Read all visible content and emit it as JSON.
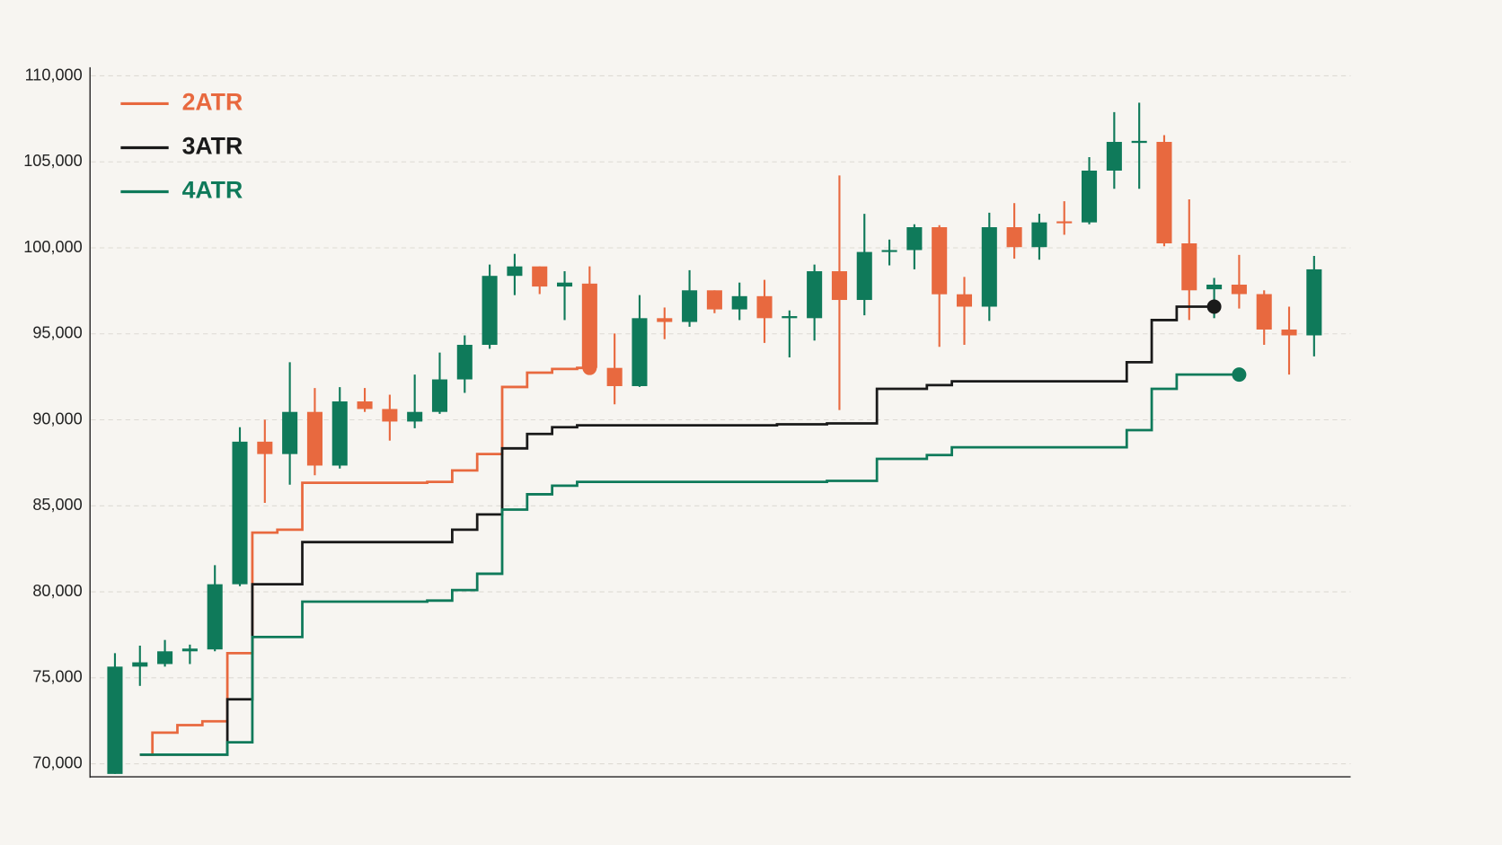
{
  "chart_data": {
    "type": "candlestick",
    "categories": [
      null,
      null,
      null,
      null,
      null,
      null,
      null,
      null,
      null,
      null,
      null,
      null,
      null,
      null,
      null,
      null,
      null,
      null,
      null,
      null,
      null,
      null,
      null,
      null,
      null,
      null,
      null,
      null,
      null,
      null,
      null,
      null,
      null,
      null,
      null,
      null,
      null,
      null,
      null,
      null,
      null,
      null,
      null,
      null,
      null,
      null,
      null,
      null,
      null
    ],
    "open": [
      69410,
      75650,
      75800,
      76540,
      76650,
      80440,
      88730,
      88010,
      90460,
      87340,
      91070,
      90630,
      89900,
      90460,
      92350,
      94360,
      98370,
      98920,
      97750,
      97920,
      93020,
      91960,
      95910,
      95690,
      97530,
      96420,
      97190,
      95910,
      95910,
      98640,
      96970,
      99760,
      99870,
      101200,
      97300,
      96580,
      101200,
      100040,
      101540,
      101480,
      104490,
      106100,
      106160,
      100260,
      97590,
      97860,
      97310,
      95250,
      94910
    ],
    "high": [
      76430,
      76870,
      77200,
      76930,
      81550,
      89570,
      90010,
      93350,
      91850,
      91900,
      91850,
      91460,
      92630,
      93910,
      94910,
      99030,
      99650,
      98920,
      98640,
      98920,
      95020,
      97250,
      96530,
      98700,
      97530,
      97980,
      98140,
      96360,
      99030,
      104210,
      101980,
      100480,
      101370,
      101320,
      98310,
      102040,
      102600,
      101980,
      102710,
      105270,
      107890,
      108440,
      106550,
      102820,
      98250,
      99590,
      97530,
      96580,
      99530
    ],
    "low": [
      69410,
      74530,
      75650,
      75800,
      76540,
      80330,
      85170,
      86230,
      86780,
      87170,
      90460,
      88790,
      89510,
      90350,
      91570,
      94130,
      97250,
      97310,
      95800,
      92690,
      90900,
      91910,
      94690,
      95410,
      96200,
      95800,
      94470,
      93630,
      94610,
      90570,
      96080,
      98980,
      98750,
      94240,
      94360,
      95750,
      99370,
      99310,
      100760,
      101370,
      103430,
      103430,
      100090,
      95800,
      95910,
      96470,
      94360,
      92630,
      93690
    ],
    "close": [
      75650,
      75900,
      76540,
      76700,
      80440,
      88730,
      88010,
      90460,
      87340,
      91070,
      90630,
      89900,
      90460,
      92350,
      94360,
      98370,
      98920,
      97750,
      97980,
      93020,
      91960,
      95910,
      95690,
      97530,
      96420,
      97190,
      95910,
      96030,
      98640,
      96970,
      99760,
      99870,
      101200,
      97300,
      96580,
      101200,
      100040,
      101480,
      101430,
      104490,
      106160,
      106220,
      100260,
      97530,
      97860,
      97310,
      95250,
      94910,
      98750
    ],
    "up_color": "#0f7a5a",
    "down_color": "#e8693f",
    "series": [
      {
        "name": "2ATR",
        "color": "#e8693f",
        "values": [
          null,
          70530,
          71810,
          72250,
          72470,
          76430,
          83440,
          83610,
          86340,
          86340,
          86340,
          86340,
          86340,
          86390,
          87060,
          88010,
          91910,
          92740,
          92960,
          93020,
          null,
          null,
          null,
          null,
          null,
          null,
          null,
          null,
          null,
          null,
          null,
          null,
          null,
          null,
          null,
          null,
          null,
          null,
          null,
          null,
          null,
          null,
          null,
          null,
          null,
          null,
          null,
          null,
          null
        ]
      },
      {
        "name": "3ATR",
        "color": "#1a1a1a",
        "values": [
          null,
          70530,
          70530,
          70530,
          70530,
          73750,
          80440,
          80440,
          82890,
          82890,
          82890,
          82890,
          82890,
          82890,
          83610,
          84500,
          88340,
          89180,
          89570,
          89680,
          89680,
          89680,
          89680,
          89680,
          89680,
          89680,
          89680,
          89740,
          89740,
          89790,
          89790,
          91800,
          91800,
          92020,
          92240,
          92240,
          92240,
          92240,
          92240,
          92240,
          92240,
          93350,
          95800,
          96580,
          96580,
          null,
          null,
          null,
          null
        ]
      },
      {
        "name": "4ATR",
        "color": "#0f7a5a",
        "values": [
          null,
          70530,
          70530,
          70530,
          70530,
          71250,
          77370,
          77370,
          79430,
          79430,
          79430,
          79430,
          79430,
          79490,
          80100,
          81050,
          84780,
          85670,
          86170,
          86390,
          86390,
          86390,
          86390,
          86390,
          86390,
          86390,
          86390,
          86390,
          86390,
          86450,
          86450,
          87730,
          87730,
          87950,
          88400,
          88400,
          88400,
          88400,
          88400,
          88400,
          88400,
          89400,
          91800,
          92630,
          92630,
          92630,
          null,
          null,
          null
        ]
      }
    ],
    "ylim": [
      69300,
      110500
    ],
    "yticks": [
      {
        "value": 70000,
        "label": "70,000"
      },
      {
        "value": 75000,
        "label": "75,000"
      },
      {
        "value": 80000,
        "label": "80,000"
      },
      {
        "value": 85000,
        "label": "85,000"
      },
      {
        "value": 90000,
        "label": "90,000"
      },
      {
        "value": 95000,
        "label": "95,000"
      },
      {
        "value": 100000,
        "label": "100,000"
      },
      {
        "value": 105000,
        "label": "105,000"
      },
      {
        "value": 110000,
        "label": "110,000"
      }
    ],
    "grid": true,
    "legend": "top-left"
  }
}
